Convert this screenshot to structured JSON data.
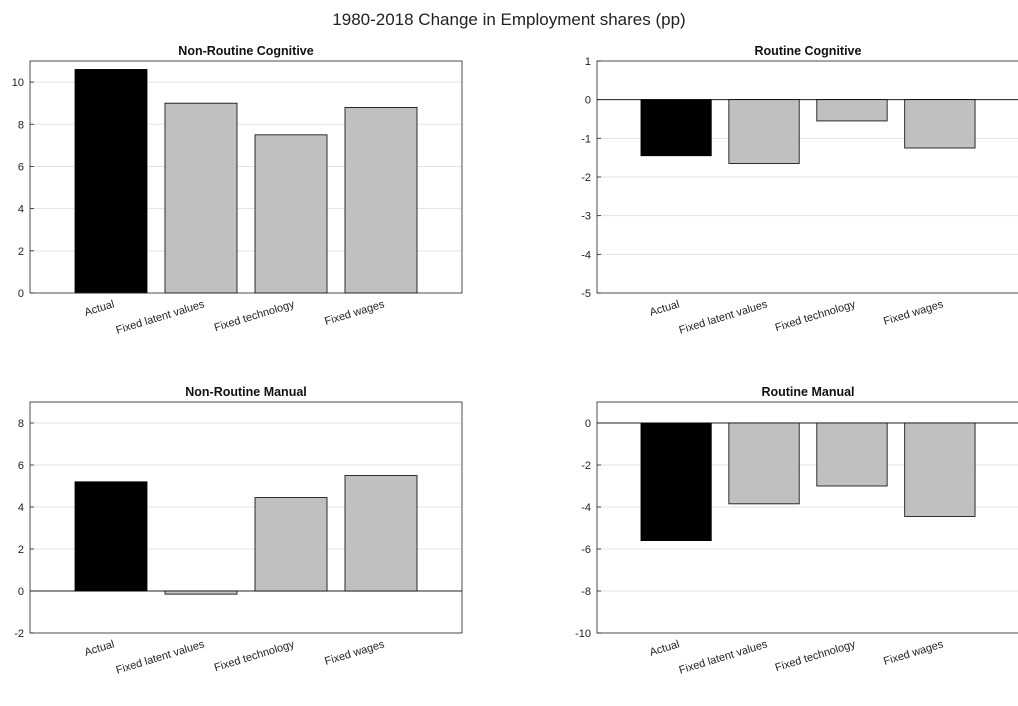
{
  "figure": {
    "title": "1980-2018 Change in Employment shares (pp)"
  },
  "colors": {
    "actual": "#000000",
    "counterfactual": "#c0c0c0",
    "grid": "#e3e3e3",
    "axis": "#222222"
  },
  "chart_data": [
    {
      "type": "bar",
      "title": "Non-Routine Cognitive",
      "categories": [
        "Actual",
        "Fixed latent values",
        "Fixed technology",
        "Fixed wages"
      ],
      "values": [
        10.6,
        9.0,
        7.5,
        8.8
      ],
      "ylim": [
        0,
        11
      ],
      "yticks": [
        0,
        2,
        4,
        6,
        8,
        10
      ],
      "grid": true
    },
    {
      "type": "bar",
      "title": "Routine Cognitive",
      "categories": [
        "Actual",
        "Fixed latent values",
        "Fixed technology",
        "Fixed wages"
      ],
      "values": [
        -1.45,
        -1.65,
        -0.55,
        -1.25
      ],
      "ylim": [
        -5,
        1
      ],
      "yticks": [
        -5,
        -4,
        -3,
        -2,
        -1,
        0,
        1
      ],
      "grid": true
    },
    {
      "type": "bar",
      "title": "Non-Routine Manual",
      "categories": [
        "Actual",
        "Fixed latent values",
        "Fixed technology",
        "Fixed wages"
      ],
      "values": [
        5.2,
        -0.15,
        4.45,
        5.5
      ],
      "ylim": [
        -2,
        9
      ],
      "yticks": [
        -2,
        0,
        2,
        4,
        6,
        8
      ],
      "grid": true
    },
    {
      "type": "bar",
      "title": "Routine Manual",
      "categories": [
        "Actual",
        "Fixed latent values",
        "Fixed technology",
        "Fixed wages"
      ],
      "values": [
        -5.6,
        -3.85,
        -3.0,
        -4.45
      ],
      "ylim": [
        -10,
        1
      ],
      "yticks": [
        -10,
        -8,
        -6,
        -4,
        -2,
        0
      ],
      "grid": true
    }
  ]
}
